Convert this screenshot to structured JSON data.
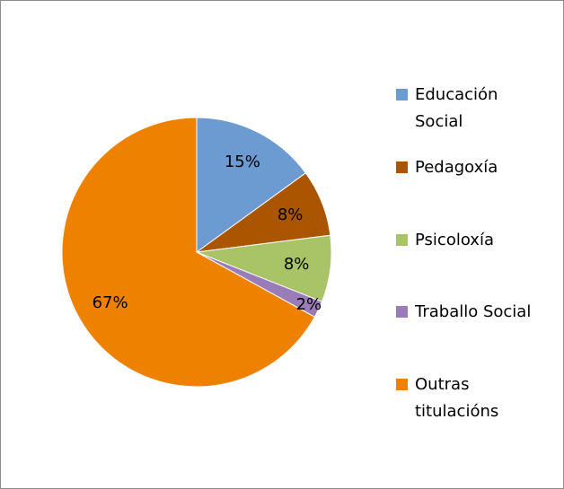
{
  "chart_data": {
    "type": "pie",
    "categories": [
      "Educación Social",
      "Pedagoxía",
      "Psicoloxía",
      "Traballo Social",
      "Outras titulacións"
    ],
    "values": [
      15,
      8,
      8,
      2,
      67
    ],
    "value_labels": [
      "15%",
      "8%",
      "8%",
      "2%",
      "67%"
    ],
    "colors": [
      "#6c9bd2",
      "#aa5500",
      "#a9c467",
      "#9a7cb9",
      "#ee8100"
    ]
  }
}
